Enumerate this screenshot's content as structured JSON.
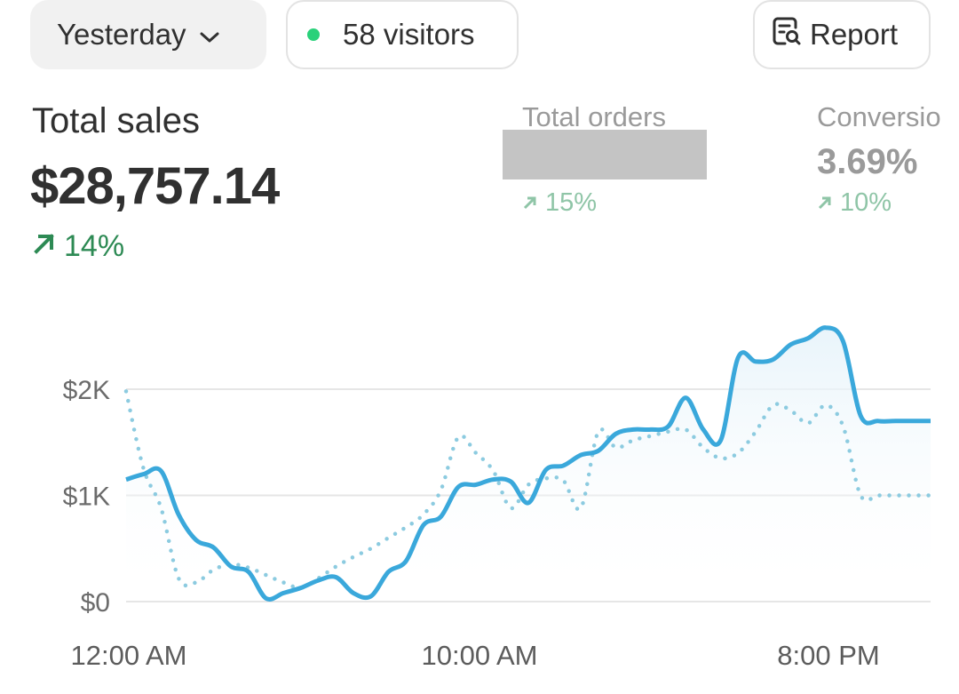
{
  "toolbar": {
    "date_label": "Yesterday",
    "visitors_label": "58 visitors",
    "report_label": "Report"
  },
  "metrics": {
    "total_sales": {
      "label": "Total sales",
      "value": "$28,757.14",
      "change": "14%"
    },
    "total_orders": {
      "label": "Total orders",
      "change": "15%"
    },
    "conversion": {
      "label": "Conversio",
      "value": "3.69%",
      "change": "10%"
    }
  },
  "colors": {
    "accent_line": "#3aa8db",
    "comparison_line": "#8ccbe0",
    "positive": "#2d8a54",
    "live_dot": "#29d17a"
  },
  "icons": {
    "date_chevron": "chevron-down-icon",
    "report": "report-search-icon",
    "change_arrow": "arrow-up-right-icon"
  },
  "chart_data": {
    "type": "line",
    "ylim": [
      0,
      2000
    ],
    "yticks": [
      {
        "value": 2000,
        "label": "$2K"
      },
      {
        "value": 1000,
        "label": "$1K"
      },
      {
        "value": 0,
        "label": "$0"
      }
    ],
    "xticks": [
      {
        "hour": 0,
        "label": "12:00 AM"
      },
      {
        "hour": 10,
        "label": "10:00 AM"
      },
      {
        "hour": 20,
        "label": "8:00 PM"
      }
    ],
    "xlim": [
      0,
      23
    ],
    "series": [
      {
        "style": "solid",
        "x": [
          0,
          0.5,
          1,
          1.5,
          2,
          2.5,
          3,
          3.5,
          4,
          4.5,
          5,
          5.5,
          6,
          6.5,
          7,
          7.5,
          8,
          8.5,
          9,
          9.5,
          10,
          10.5,
          11,
          11.5,
          12,
          12.5,
          13,
          13.5,
          14,
          14.5,
          15,
          15.5,
          16,
          16.5,
          17,
          17.5,
          18,
          18.5,
          19,
          19.5,
          20,
          20.5,
          21,
          21.5,
          22,
          22.5,
          23
        ],
        "values": [
          1150,
          1200,
          1230,
          820,
          580,
          510,
          330,
          280,
          30,
          80,
          130,
          200,
          230,
          80,
          50,
          280,
          380,
          720,
          800,
          1080,
          1100,
          1150,
          1130,
          930,
          1240,
          1280,
          1380,
          1420,
          1580,
          1620,
          1620,
          1650,
          1920,
          1620,
          1520,
          2300,
          2260,
          2280,
          2420,
          2480,
          2580,
          2450,
          1750,
          1700,
          1700,
          1700,
          1700
        ]
      },
      {
        "style": "dotted",
        "x": [
          0,
          0.5,
          1,
          1.5,
          2,
          2.5,
          3,
          3.5,
          4,
          4.5,
          5,
          5.5,
          6,
          6.5,
          7,
          7.5,
          8,
          8.5,
          9,
          9.5,
          10,
          10.5,
          11,
          11.5,
          12,
          12.5,
          13,
          13.5,
          14,
          14.5,
          15,
          15.5,
          16,
          16.5,
          17,
          17.5,
          18,
          18.5,
          19,
          19.5,
          20,
          20.5,
          21,
          21.5,
          22,
          22.5,
          23
        ],
        "values": [
          1980,
          1250,
          880,
          220,
          180,
          300,
          350,
          320,
          250,
          180,
          130,
          220,
          330,
          420,
          500,
          600,
          700,
          820,
          1050,
          1550,
          1400,
          1230,
          880,
          1100,
          1160,
          1140,
          880,
          1600,
          1450,
          1520,
          1560,
          1600,
          1620,
          1450,
          1350,
          1400,
          1600,
          1850,
          1800,
          1680,
          1850,
          1650,
          1000,
          1000,
          1000,
          1000,
          1000
        ]
      }
    ]
  }
}
